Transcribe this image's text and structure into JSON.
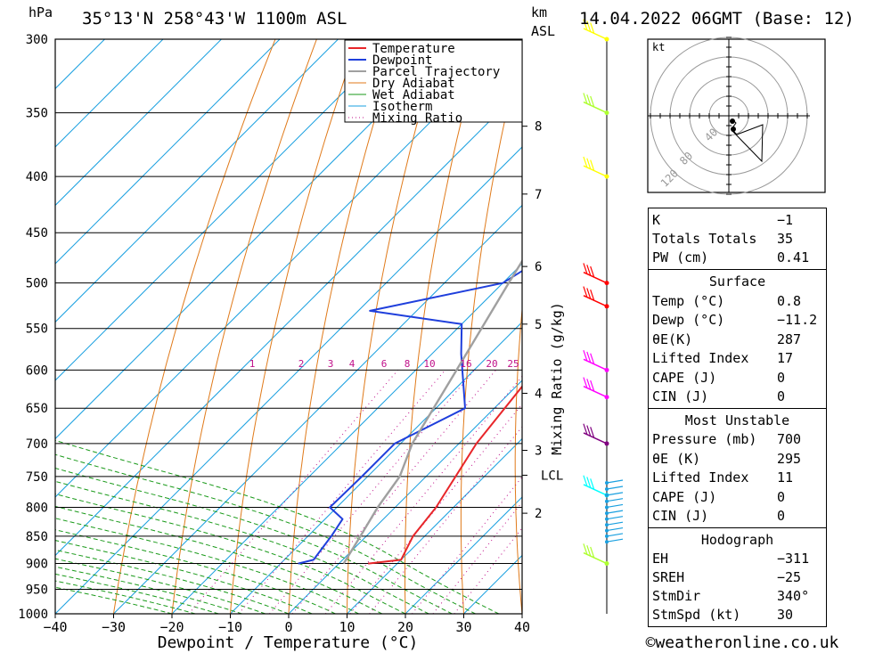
{
  "header": {
    "unit_hpa": "hPa",
    "location": "35°13'N  258°43'W  1100m  ASL",
    "unit_km": "km",
    "unit_asl": "ASL",
    "datetime": "14.04.2022  06GMT  (Base: 12)"
  },
  "footer": {
    "credit": "©weatheronline.co.uk"
  },
  "colors": {
    "temperature": "#e8262a",
    "dewpoint": "#1f3fdc",
    "parcel": "#a0a0a0",
    "dry_adiabat": "#e07a1a",
    "wet_adiabat": "#1a9a1a",
    "isotherm": "#1aa0e0",
    "mixing_ratio": "#c0108a"
  },
  "chart_data": {
    "type": "line",
    "title": "",
    "xlabel": "Dewpoint / Temperature (°C)",
    "ylabel": "hPa",
    "y2label": "Mixing Ratio (g/kg)",
    "xlim": [
      -40,
      40
    ],
    "ylim": [
      1000,
      300
    ],
    "y_scale": "log",
    "x_ticks": [
      "−40",
      "−30",
      "−20",
      "−10",
      "0",
      "10",
      "20",
      "30",
      "40"
    ],
    "pressure_levels": [
      300,
      350,
      400,
      450,
      500,
      550,
      600,
      650,
      700,
      750,
      800,
      850,
      900,
      950,
      1000
    ],
    "km_ticks": [
      {
        "km": "8",
        "p": 360
      },
      {
        "km": "7",
        "p": 415
      },
      {
        "km": "6",
        "p": 483
      },
      {
        "km": "5",
        "p": 545
      },
      {
        "km": "4",
        "p": 630
      },
      {
        "km": "3",
        "p": 710
      },
      {
        "km": "LCL",
        "p": 748
      },
      {
        "km": "2",
        "p": 810
      }
    ],
    "mixing_ratio_labels": [
      "1",
      "2",
      "3",
      "4",
      "6",
      "8",
      "10",
      "16",
      "20",
      "25"
    ],
    "legend": [
      "Temperature",
      "Dewpoint",
      "Parcel Trajectory",
      "Dry Adiabat",
      "Wet Adiabat",
      "Isotherm",
      "Mixing Ratio"
    ],
    "legend_position": "top-right",
    "series": [
      {
        "name": "Temperature",
        "points": [
          [
            5,
            900
          ],
          [
            10,
            893
          ],
          [
            8,
            850
          ],
          [
            7,
            800
          ],
          [
            3,
            700
          ],
          [
            0.5,
            600
          ],
          [
            -1,
            540
          ],
          [
            1,
            530
          ],
          [
            -0.5,
            480
          ],
          [
            2,
            400
          ],
          [
            -1,
            350
          ],
          [
            -2,
            300
          ]
        ]
      },
      {
        "name": "Dewpoint",
        "points": [
          [
            -7,
            900
          ],
          [
            -5,
            893
          ],
          [
            -6,
            850
          ],
          [
            -7,
            820
          ],
          [
            -11.2,
            800
          ],
          [
            -11,
            750
          ],
          [
            -11,
            700
          ],
          [
            -5,
            650
          ],
          [
            -15,
            580
          ],
          [
            -20,
            545
          ],
          [
            -38,
            530
          ],
          [
            -20,
            500
          ],
          [
            -18,
            480
          ],
          [
            -25,
            420
          ],
          [
            -27,
            400
          ],
          [
            -21,
            350
          ],
          [
            -23,
            300
          ]
        ]
      },
      {
        "name": "Parcel Trajectory",
        "points": [
          [
            0.8,
            900
          ],
          [
            -1,
            850
          ],
          [
            -3,
            800
          ],
          [
            -4.5,
            750
          ],
          [
            -8,
            700
          ],
          [
            -13,
            600
          ],
          [
            -19,
            500
          ],
          [
            -26,
            400
          ],
          [
            -33,
            300
          ]
        ]
      }
    ]
  },
  "wind_levels": [
    {
      "p": 300,
      "color": "yellow"
    },
    {
      "p": 350,
      "color": "greenyellow"
    },
    {
      "p": 400,
      "color": "yellow"
    },
    {
      "p": 500,
      "color": "red"
    },
    {
      "p": 525,
      "color": "red"
    },
    {
      "p": 600,
      "color": "magenta"
    },
    {
      "p": 635,
      "color": "magenta"
    },
    {
      "p": 700,
      "color": "purple"
    },
    {
      "p": 780,
      "color": "cyan"
    },
    {
      "p": 900,
      "color": "greenyellow"
    }
  ],
  "hodograph": {
    "unit": "kt",
    "rings": [
      "40",
      "80",
      "120"
    ]
  },
  "indices": {
    "k_label": "K",
    "k_value": "−1",
    "tt_label": "Totals Totals",
    "tt_value": "35",
    "pw_label": "PW (cm)",
    "pw_value": "0.41"
  },
  "surface": {
    "title": "Surface",
    "temp_label": "Temp (°C)",
    "temp_value": "0.8",
    "dewp_label": "Dewp (°C)",
    "dewp_value": "−11.2",
    "thetae_label": "θE(K)",
    "thetae_value": "287",
    "li_label": "Lifted Index",
    "li_value": "17",
    "cape_label": "CAPE (J)",
    "cape_value": "0",
    "cin_label": "CIN (J)",
    "cin_value": "0"
  },
  "most_unstable": {
    "title": "Most Unstable",
    "pres_label": "Pressure (mb)",
    "pres_value": "700",
    "thetae_label": "θE (K)",
    "thetae_value": "295",
    "li_label": "Lifted Index",
    "li_value": "11",
    "cape_label": "CAPE (J)",
    "cape_value": "0",
    "cin_label": "CIN (J)",
    "cin_value": "0"
  },
  "hodo_params": {
    "title": "Hodograph",
    "eh_label": "EH",
    "eh_value": "−311",
    "sreh_label": "SREH",
    "sreh_value": "−25",
    "stmdir_label": "StmDir",
    "stmdir_value": "340°",
    "stmspd_label": "StmSpd (kt)",
    "stmspd_value": "30"
  }
}
